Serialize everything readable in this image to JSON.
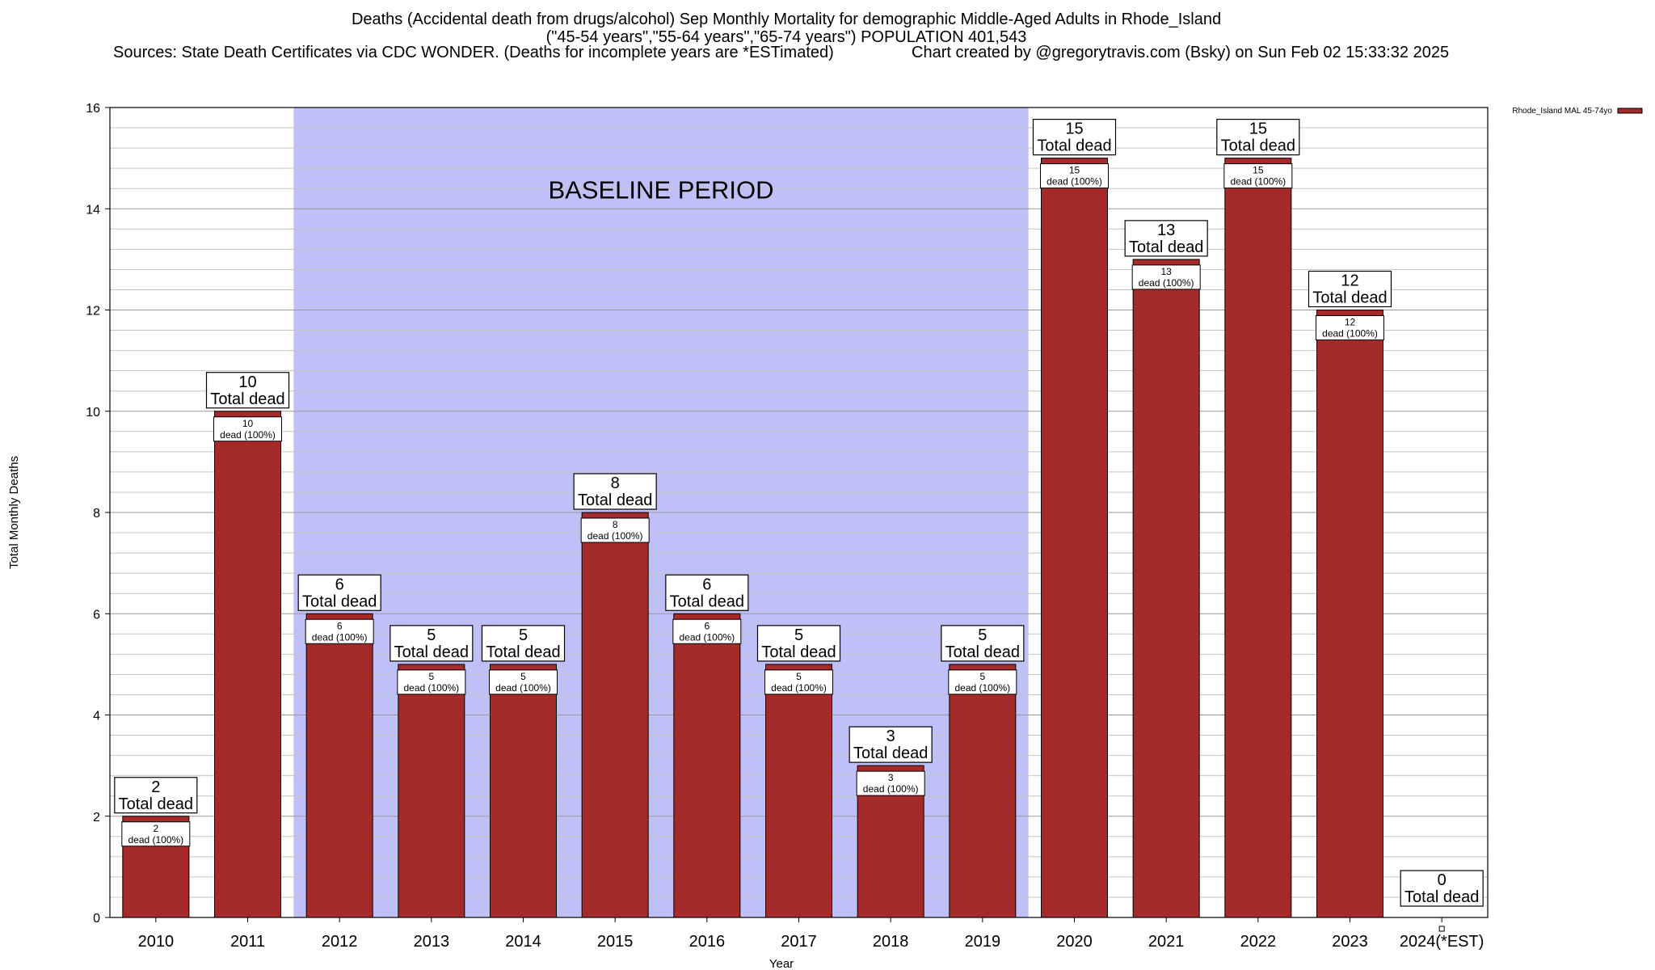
{
  "title": {
    "line1": "Deaths (Accidental death from drugs/alcohol) Sep Monthly Mortality for demographic Middle-Aged Adults in Rhode_Island",
    "line2": "(\"45-54 years\",\"55-64 years\",\"65-74 years\") POPULATION 401,543",
    "sources": "Sources: State Death Certificates via CDC WONDER. (Deaths for incomplete years are *ESTimated)",
    "credit": "Chart created by @gregorytravis.com (Bsky) on Sun Feb 02 15:33:32 2025"
  },
  "chart_data": {
    "type": "bar",
    "xlabel": "Year",
    "ylabel": "Total Monthly Deaths",
    "ylim": [
      0,
      16
    ],
    "yticks": [
      0,
      2,
      4,
      6,
      8,
      10,
      12,
      14,
      16
    ],
    "categories": [
      "2010",
      "2011",
      "2012",
      "2013",
      "2014",
      "2015",
      "2016",
      "2017",
      "2018",
      "2019",
      "2020",
      "2021",
      "2022",
      "2023",
      "2024(*EST)"
    ],
    "series": [
      {
        "name": "Rhode_Island MAL 45-74yo",
        "color": "#a52a2a",
        "values": [
          2,
          10,
          6,
          5,
          5,
          8,
          6,
          5,
          3,
          5,
          15,
          13,
          15,
          12,
          0
        ]
      }
    ],
    "total_label": "Total dead",
    "segment_label_suffix": "dead (100%)",
    "baseline": {
      "label": "BASELINE PERIOD",
      "from": "2012",
      "to": "2019",
      "color": "#c0c0f8"
    },
    "legend_position": "top-right",
    "grid": true
  }
}
